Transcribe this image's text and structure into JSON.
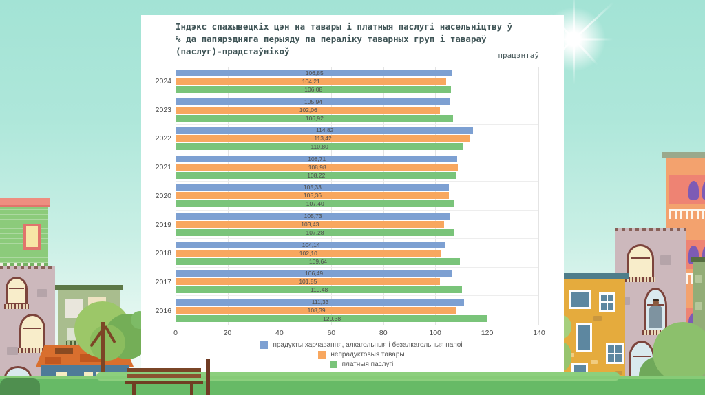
{
  "chart_data": {
    "type": "bar",
    "orientation": "horizontal",
    "title": "Індэкс спажывецкіх цэн на тавары і платныя паслугі насельніцтву ў % да папярэдняга перыяду па пераліку таварных груп і тавараў (паслуг)-прадстаўнікоў",
    "unit_label": "працэнтаў",
    "categories": [
      "2024",
      "2023",
      "2022",
      "2021",
      "2020",
      "2019",
      "2018",
      "2017",
      "2016"
    ],
    "series": [
      {
        "name": "прадукты харчавання, алкагольныя і безалкагольныя напоі",
        "color": "#7da0d2",
        "values": [
          106.85,
          105.94,
          114.82,
          108.71,
          105.33,
          105.73,
          104.14,
          106.49,
          111.33
        ]
      },
      {
        "name": "непрадуктовыя тавары",
        "color": "#f8a75f",
        "values": [
          104.21,
          102.06,
          113.42,
          108.98,
          105.36,
          103.43,
          102.1,
          101.85,
          108.39
        ]
      },
      {
        "name": "платныя паслугі",
        "color": "#7ac47a",
        "values": [
          106.08,
          106.92,
          110.8,
          108.22,
          107.4,
          107.28,
          109.64,
          110.48,
          120.38
        ]
      }
    ],
    "xlim": [
      0,
      140
    ],
    "xticks": [
      0,
      20,
      40,
      60,
      80,
      100,
      120,
      140
    ],
    "grid": true,
    "legend_position": "bottom",
    "decimal_separator": ","
  }
}
